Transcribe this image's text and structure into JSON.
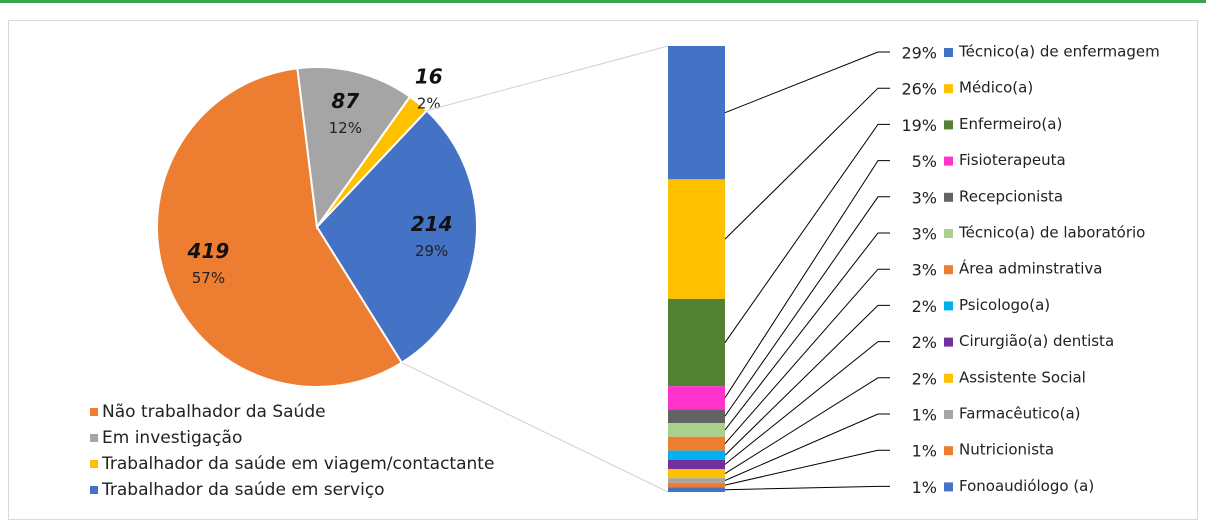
{
  "chart_data": [
    {
      "type": "pie",
      "categories": [
        "Não trabalhador da Saúde",
        "Em investigação",
        "Trabalhador da saúde em viagem/contactante",
        "Trabalhador da saúde em serviço"
      ],
      "values": [
        419,
        87,
        16,
        214
      ],
      "percent_labels": [
        "57%",
        "12%",
        "2%",
        "29%"
      ],
      "colors": [
        "#ed7d31",
        "#a5a5a5",
        "#ffc000",
        "#4472c4"
      ]
    },
    {
      "type": "stacked-bar",
      "categories": [
        "Técnico(a) de enfermagem",
        "Médico(a)",
        "Enfermeiro(a)",
        "Fisioterapeuta",
        "Recepcionista",
        "Técnico(a) de laboratório",
        "Área adminstrativa",
        "Psicologo(a)",
        "Cirurgião(a) dentista",
        "Assistente Social",
        "Farmacêutico(a)",
        "Nutricionista",
        "Fonoaudiólogo (a)"
      ],
      "values": [
        29,
        26,
        19,
        5,
        3,
        3,
        3,
        2,
        2,
        2,
        1,
        1,
        1
      ],
      "value_labels": [
        "29%",
        "26%",
        "19%",
        "5%",
        "3%",
        "3%",
        "3%",
        "2%",
        "2%",
        "2%",
        "1%",
        "1%",
        "1%"
      ],
      "colors": [
        "#4472c4",
        "#ffc000",
        "#548235",
        "#ff33cc",
        "#636363",
        "#a9d18e",
        "#ed7d31",
        "#00b0f0",
        "#7030a0",
        "#ffc000",
        "#a5a5a5",
        "#ed7d31",
        "#4472c4"
      ]
    }
  ]
}
